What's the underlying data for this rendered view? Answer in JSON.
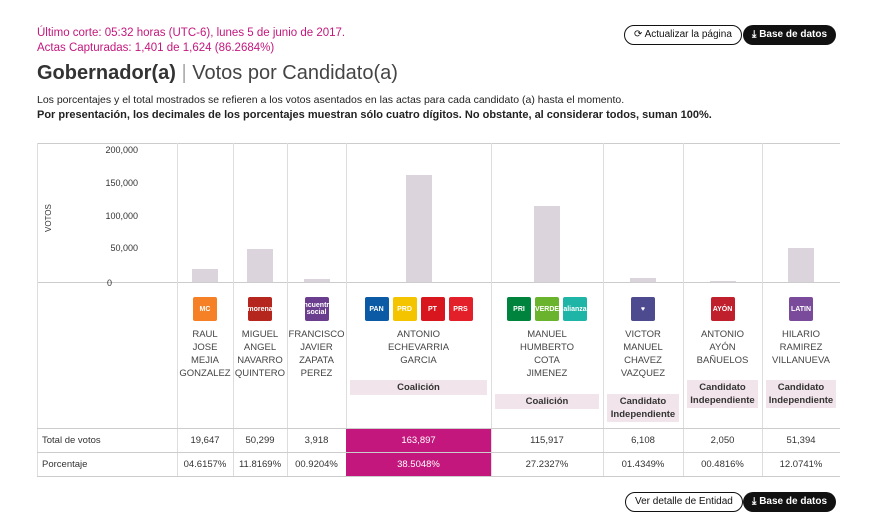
{
  "header": {
    "last_cut": "Último corte: 05:32 horas (UTC-6), lunes 5 de junio de 2017.",
    "actas": "Actas Capturadas: 1,401 de 1,624 (86.2684%)",
    "refresh_label": "Actualizar la página",
    "db_label": "Base de datos"
  },
  "title": {
    "main": "Gobernador(a)",
    "sep": "|",
    "sub": "Votos por Candidato(a)"
  },
  "desc": {
    "line1": "Los porcentajes y el total mostrados se refieren a los votos asentados en las actas para cada candidato (a) hasta el momento.",
    "line2": "Por presentación, los decimales de los porcentajes muestran sólo cuatro dígitos. No obstante, al considerar todos, suman 100%."
  },
  "chart_data": {
    "type": "bar",
    "ylabel": "VOTOS",
    "ylim": [
      0,
      200000
    ],
    "yticks": [
      "200,000",
      "150,000",
      "100,000",
      "50,000",
      "0"
    ],
    "categories": [
      "RAUL JOSE MEJIA GONZALEZ",
      "MIGUEL ANGEL NAVARRO QUINTERO",
      "FRANCISCO JAVIER ZAPATA PEREZ",
      "ANTONIO ECHEVARRIA GARCIA",
      "MANUEL HUMBERTO COTA JIMENEZ",
      "VICTOR MANUEL CHAVEZ VAZQUEZ",
      "ANTONIO AYÓN BAÑUELOS",
      "HILARIO RAMIREZ VILLANUEVA"
    ],
    "values": [
      19647,
      50299,
      3918,
      163897,
      115917,
      6108,
      2050,
      51394
    ]
  },
  "candidates": [
    {
      "name": [
        "RAUL",
        "JOSE",
        "MEJIA",
        "GONZALEZ"
      ],
      "logos": [
        {
          "label": "MC",
          "color": "#f58025"
        }
      ],
      "tag": "",
      "votes": "19,647",
      "pct": "04.6157%"
    },
    {
      "name": [
        "MIGUEL",
        "ANGEL",
        "NAVARRO",
        "QUINTERO"
      ],
      "logos": [
        {
          "label": "morena",
          "color": "#b5261e"
        }
      ],
      "tag": "",
      "votes": "50,299",
      "pct": "11.8169%"
    },
    {
      "name": [
        "FRANCISCO",
        "JAVIER",
        "ZAPATA",
        "PEREZ"
      ],
      "logos": [
        {
          "label": "encuentro social",
          "color": "#6a3d8f"
        }
      ],
      "tag": "",
      "votes": "3,918",
      "pct": "00.9204%"
    },
    {
      "name": [
        "ANTONIO",
        "ECHEVARRIA",
        "GARCIA"
      ],
      "logos": [
        {
          "label": "PAN",
          "color": "#0b5aa6"
        },
        {
          "label": "PRD",
          "color": "#f5c400"
        },
        {
          "label": "PT",
          "color": "#d7161e"
        },
        {
          "label": "PRS",
          "color": "#e3202a"
        }
      ],
      "tag": "Coalición",
      "votes": "163,897",
      "pct": "38.5048%"
    },
    {
      "name": [
        "MANUEL",
        "HUMBERTO",
        "COTA",
        "JIMENEZ"
      ],
      "logos": [
        {
          "label": "PRI",
          "color": "#00843d"
        },
        {
          "label": "VERDE",
          "color": "#6ab42d"
        },
        {
          "label": "alianza",
          "color": "#1eb5a6"
        }
      ],
      "tag": "Coalición",
      "votes": "115,917",
      "pct": "27.2327%"
    },
    {
      "name": [
        "VICTOR",
        "MANUEL",
        "CHAVEZ",
        "VAZQUEZ"
      ],
      "logos": [
        {
          "label": "♥",
          "color": "#4d4a8f"
        }
      ],
      "tag": "Candidato Independiente",
      "votes": "6,108",
      "pct": "01.4349%"
    },
    {
      "name": [
        "ANTONIO",
        "AYÓN",
        "BAÑUELOS"
      ],
      "logos": [
        {
          "label": "AYÓN",
          "color": "#c01f2c"
        }
      ],
      "tag": "Candidato Independiente",
      "votes": "2,050",
      "pct": "00.4816%"
    },
    {
      "name": [
        "HILARIO",
        "RAMIREZ",
        "VILLANUEVA"
      ],
      "logos": [
        {
          "label": "LATIN",
          "color": "#7a4b9a"
        }
      ],
      "tag": "Candidato Independiente",
      "votes": "51,394",
      "pct": "12.0741%"
    }
  ],
  "highlight_index": 3,
  "rows": {
    "total_label": "Total de votos",
    "pct_label": "Porcentaje"
  },
  "footer": {
    "detail_label": "Ver detalle de Entidad",
    "db_label": "Base de datos"
  },
  "colors": {
    "accent": "#c4177d",
    "bar": "#dcd4dd",
    "tag_bg": "#f1e4ea"
  }
}
